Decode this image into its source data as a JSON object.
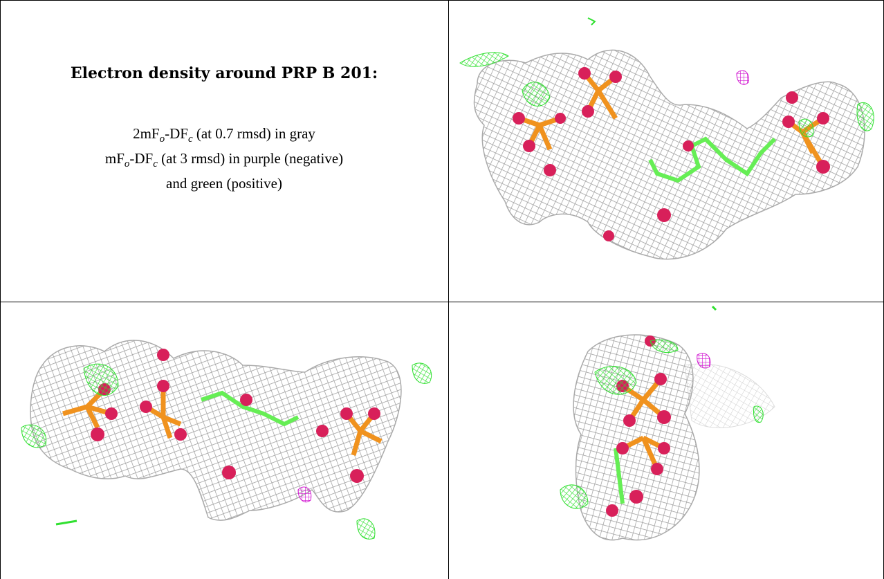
{
  "panels": {
    "caption": {
      "title": "Electron density around PRP B 201:",
      "line1_prefix": "2mF",
      "line1_sub1": "o",
      "line1_mid": "-DF",
      "line1_sub2": "c",
      "line1_suffix": " (at 0.7 rmsd) in gray",
      "line2_prefix": "mF",
      "line2_sub1": "o",
      "line2_mid": "-DF",
      "line2_sub2": "c",
      "line2_suffix": " (at 3 rmsd) in purple (negative)",
      "line3": "and green (positive)"
    }
  },
  "colors": {
    "mesh_gray": "#9a9a9a",
    "mesh_green": "#2fe02f",
    "mesh_purple": "#d21ad2",
    "atom_oxygen": "#d8205a",
    "atom_phosphorus": "#f0921e",
    "carbon_green": "#66ee55"
  }
}
